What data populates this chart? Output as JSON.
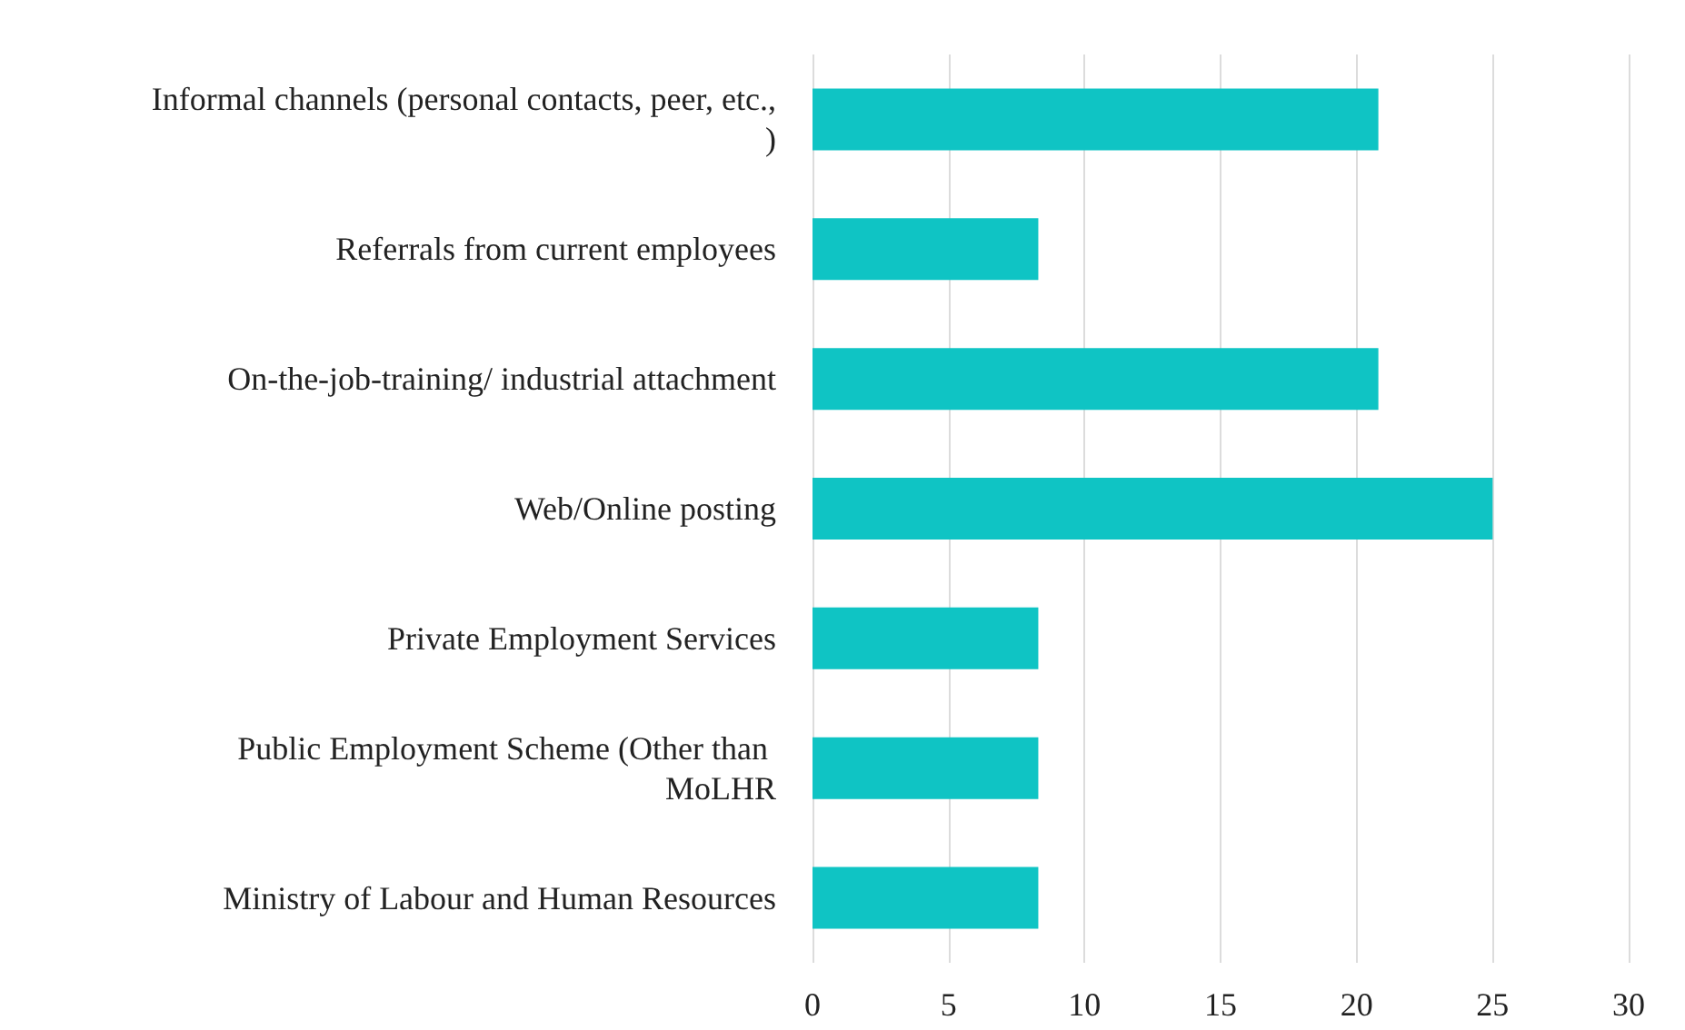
{
  "chart_data": {
    "type": "bar",
    "orientation": "horizontal",
    "categories": [
      "Informal channels (personal contacts, peer, etc.,)",
      "Referrals from current employees",
      "On-the-job-training/ industrial attachment",
      "Web/Online posting",
      "Private Employment Services",
      "Public Employment Scheme (Other than MoLHR",
      "Ministry of Labour and Human Resources"
    ],
    "values": [
      20.8,
      8.3,
      20.8,
      25,
      8.3,
      8.3,
      8.3
    ],
    "color": "#0fc4c4",
    "xlim": [
      0,
      30
    ],
    "xticks": [
      0,
      5,
      10,
      15,
      20,
      25,
      30
    ],
    "grid": "x"
  }
}
